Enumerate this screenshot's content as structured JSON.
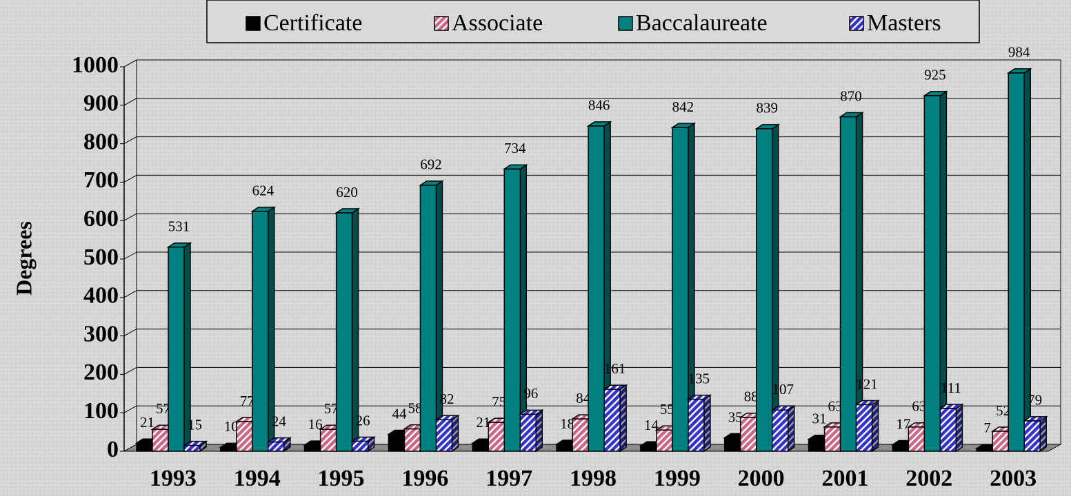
{
  "chart_data": {
    "type": "bar3d",
    "y_label": "Degrees",
    "categories": [
      "1993",
      "1994",
      "1995",
      "1996",
      "1997",
      "1998",
      "1999",
      "2000",
      "2001",
      "2002",
      "2003"
    ],
    "series": [
      {
        "name": "Certificate",
        "color": "#000000",
        "hatch": false,
        "values": [
          21,
          10,
          16,
          44,
          21,
          18,
          14,
          35,
          31,
          17,
          7
        ]
      },
      {
        "name": "Associate",
        "color": "#cc6688",
        "hatch": true,
        "values": [
          57,
          77,
          57,
          58,
          75,
          84,
          55,
          88,
          63,
          63,
          52
        ]
      },
      {
        "name": "Baccalaureate",
        "color": "#008080",
        "hatch": false,
        "values": [
          531,
          624,
          620,
          692,
          734,
          846,
          842,
          839,
          870,
          925,
          984
        ]
      },
      {
        "name": "Masters",
        "color": "#3333cc",
        "hatch": true,
        "values": [
          15,
          24,
          26,
          82,
          96,
          161,
          135,
          107,
          121,
          111,
          79
        ]
      }
    ],
    "ylim": [
      0,
      1000
    ],
    "yticks": [
      0,
      100,
      200,
      300,
      400,
      500,
      600,
      700,
      800,
      900,
      1000
    ],
    "grid": true,
    "legend": "top"
  }
}
